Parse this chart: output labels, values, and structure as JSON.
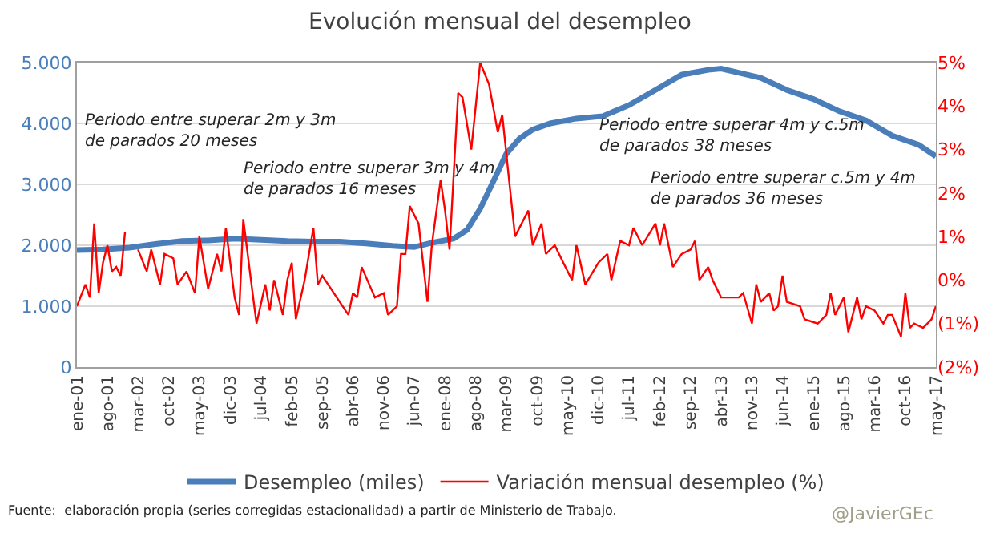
{
  "chart_data": {
    "type": "line",
    "title": "Evolución mensual del desempleo",
    "xlim": [
      "2001-01",
      "2017-05"
    ],
    "xticks": [
      {
        "value": "2001-01",
        "label": "ene-01"
      },
      {
        "value": "2001-08",
        "label": "ago-01"
      },
      {
        "value": "2002-03",
        "label": "mar-02"
      },
      {
        "value": "2002-10",
        "label": "oct-02"
      },
      {
        "value": "2003-05",
        "label": "may-03"
      },
      {
        "value": "2003-12",
        "label": "dic-03"
      },
      {
        "value": "2004-07",
        "label": "jul-04"
      },
      {
        "value": "2005-02",
        "label": "feb-05"
      },
      {
        "value": "2005-09",
        "label": "sep-05"
      },
      {
        "value": "2006-04",
        "label": "abr-06"
      },
      {
        "value": "2006-11",
        "label": "nov-06"
      },
      {
        "value": "2007-06",
        "label": "jun-07"
      },
      {
        "value": "2008-01",
        "label": "ene-08"
      },
      {
        "value": "2008-08",
        "label": "ago-08"
      },
      {
        "value": "2009-03",
        "label": "mar-09"
      },
      {
        "value": "2009-10",
        "label": "oct-09"
      },
      {
        "value": "2010-05",
        "label": "may-10"
      },
      {
        "value": "2010-12",
        "label": "dic-10"
      },
      {
        "value": "2011-07",
        "label": "jul-11"
      },
      {
        "value": "2012-02",
        "label": "feb-12"
      },
      {
        "value": "2012-09",
        "label": "sep-12"
      },
      {
        "value": "2013-04",
        "label": "abr-13"
      },
      {
        "value": "2013-11",
        "label": "nov-13"
      },
      {
        "value": "2014-06",
        "label": "jun-14"
      },
      {
        "value": "2015-01",
        "label": "ene-15"
      },
      {
        "value": "2015-08",
        "label": "ago-15"
      },
      {
        "value": "2016-03",
        "label": "mar-16"
      },
      {
        "value": "2016-10",
        "label": "oct-16"
      },
      {
        "value": "2017-05",
        "label": "may-17"
      }
    ],
    "ylim": [
      0,
      5000
    ],
    "yticks": [
      {
        "value": 0,
        "label": "0"
      },
      {
        "value": 1000,
        "label": "1.000"
      },
      {
        "value": 2000,
        "label": "2.000"
      },
      {
        "value": 3000,
        "label": "3.000"
      },
      {
        "value": 4000,
        "label": "4.000"
      },
      {
        "value": 5000,
        "label": "5.000"
      }
    ],
    "y2lim": [
      -2,
      5
    ],
    "y2ticks": [
      {
        "value": -2,
        "label": "(2%)"
      },
      {
        "value": -1,
        "label": "(1%)"
      },
      {
        "value": 0,
        "label": "0%"
      },
      {
        "value": 1,
        "label": "1%"
      },
      {
        "value": 2,
        "label": "2%"
      },
      {
        "value": 3,
        "label": "3%"
      },
      {
        "value": 4,
        "label": "4%"
      },
      {
        "value": 5,
        "label": "5%"
      }
    ],
    "grid": "y",
    "legend": "bottom",
    "marker": "none",
    "series": [
      {
        "name": "Desempleo (miles)",
        "color": "#4a7ebb",
        "x": [
          "2001-01",
          "2001-07",
          "2002-01",
          "2002-07",
          "2003-01",
          "2003-07",
          "2004-01",
          "2004-07",
          "2005-01",
          "2005-07",
          "2006-01",
          "2006-07",
          "2007-01",
          "2007-06",
          "2007-10",
          "2008-03",
          "2008-06",
          "2008-09",
          "2008-12",
          "2009-03",
          "2009-06",
          "2009-09",
          "2010-01",
          "2010-07",
          "2011-01",
          "2011-07",
          "2012-01",
          "2012-07",
          "2013-01",
          "2013-04",
          "2013-07",
          "2014-01",
          "2014-07",
          "2015-01",
          "2015-07",
          "2016-01",
          "2016-07",
          "2017-01",
          "2017-05"
        ],
        "values": [
          1920,
          1930,
          1960,
          2020,
          2070,
          2080,
          2110,
          2090,
          2070,
          2060,
          2060,
          2030,
          1990,
          1970,
          2040,
          2110,
          2250,
          2600,
          3050,
          3500,
          3750,
          3900,
          4000,
          4080,
          4120,
          4300,
          4550,
          4800,
          4880,
          4900,
          4850,
          4750,
          4550,
          4400,
          4200,
          4050,
          3800,
          3650,
          3460
        ]
      },
      {
        "name": "Variación mensual desempleo (%)",
        "color": "#ff0000",
        "axis": "y2",
        "x": [
          "2001-01",
          "2001-03",
          "2001-04",
          "2001-05",
          "2001-06",
          "2001-07",
          "2001-08",
          "2001-09",
          "2001-10",
          "2001-11",
          "2001-12",
          "2002-01",
          "2002-03",
          "2002-05",
          "2002-06",
          "2002-08",
          "2002-09",
          "2002-11",
          "2002-12",
          "2003-02",
          "2003-04",
          "2003-05",
          "2003-07",
          "2003-09",
          "2003-10",
          "2003-11",
          "2004-01",
          "2004-02",
          "2004-03",
          "2004-05",
          "2004-06",
          "2004-08",
          "2004-09",
          "2004-10",
          "2004-12",
          "2005-01",
          "2005-02",
          "2005-03",
          "2005-05",
          "2005-07",
          "2005-08",
          "2005-09",
          "2006-03",
          "2006-04",
          "2006-05",
          "2006-06",
          "2006-09",
          "2006-11",
          "2006-12",
          "2007-02",
          "2007-03",
          "2007-04",
          "2007-05",
          "2007-07",
          "2007-09",
          "2007-10",
          "2007-12",
          "2008-01",
          "2008-02",
          "2008-04",
          "2008-05",
          "2008-07",
          "2008-09",
          "2008-11",
          "2009-01",
          "2009-02",
          "2009-05",
          "2009-08",
          "2009-09",
          "2009-11",
          "2009-12",
          "2010-02",
          "2010-04",
          "2010-06",
          "2010-07",
          "2010-09",
          "2010-12",
          "2011-02",
          "2011-03",
          "2011-05",
          "2011-07",
          "2011-08",
          "2011-10",
          "2012-01",
          "2012-02",
          "2012-03",
          "2012-05",
          "2012-07",
          "2012-09",
          "2012-10",
          "2012-11",
          "2013-01",
          "2013-02",
          "2013-04",
          "2013-06",
          "2013-08",
          "2013-09",
          "2013-11",
          "2013-12",
          "2014-01",
          "2014-03",
          "2014-04",
          "2014-05",
          "2014-06",
          "2014-07",
          "2014-10",
          "2014-11",
          "2015-02",
          "2015-04",
          "2015-05",
          "2015-06",
          "2015-08",
          "2015-09",
          "2015-11",
          "2015-12",
          "2016-01",
          "2016-03",
          "2016-05",
          "2016-06",
          "2016-07",
          "2016-09",
          "2016-10",
          "2016-11",
          "2016-12",
          "2017-02",
          "2017-04",
          "2017-05"
        ],
        "values": [
          -0.6,
          -0.1,
          -0.4,
          1.3,
          -0.3,
          0.4,
          0.8,
          0.2,
          0.3,
          0.1,
          1.1,
          null,
          0.7,
          0.2,
          0.7,
          -0.1,
          0.6,
          0.5,
          -0.1,
          0.2,
          -0.3,
          1.0,
          -0.2,
          0.6,
          0.2,
          1.2,
          -0.4,
          -0.8,
          1.4,
          -0.2,
          -1.0,
          -0.1,
          -0.7,
          0.0,
          -0.8,
          0.0,
          0.4,
          -0.9,
          0.0,
          1.2,
          -0.1,
          0.1,
          -0.8,
          -0.3,
          -0.4,
          0.3,
          -0.4,
          -0.3,
          -0.8,
          -0.6,
          0.6,
          0.6,
          1.7,
          1.3,
          -0.5,
          0.8,
          2.3,
          1.6,
          0.7,
          4.3,
          4.2,
          3.0,
          5.0,
          4.5,
          3.4,
          3.8,
          1.0,
          1.6,
          0.8,
          1.3,
          0.6,
          0.8,
          0.4,
          0.0,
          0.8,
          -0.1,
          0.4,
          0.6,
          0.0,
          0.9,
          0.8,
          1.2,
          0.8,
          1.3,
          0.8,
          1.3,
          0.3,
          0.6,
          0.7,
          0.9,
          0.0,
          0.3,
          0.0,
          -0.4,
          -0.4,
          -0.4,
          -0.3,
          -1.0,
          -0.1,
          -0.5,
          -0.3,
          -0.7,
          -0.6,
          0.1,
          -0.5,
          -0.6,
          -0.9,
          -1.0,
          -0.8,
          -0.3,
          -0.8,
          -0.4,
          -1.2,
          -0.4,
          -0.9,
          -0.6,
          -0.7,
          -1.0,
          -0.8,
          -0.8,
          -1.3,
          -0.3,
          -1.1,
          -1.0,
          -1.1,
          -0.9,
          -0.6
        ]
      }
    ],
    "annotations": [
      "Periodo entre superar 2m y 3m\nde parados 20 meses",
      "Periodo entre superar 3m y 4m\nde parados 16 meses",
      "Periodo entre superar 4m y c.5m\nde parados 38 meses",
      "Periodo entre superar c.5m y 4m\nde parados 36 meses",
      "Fuente:  elaboración propia (series corregidas estacionalidad) a partir de Ministerio de Trabajo.",
      "@JavierGEc"
    ]
  }
}
